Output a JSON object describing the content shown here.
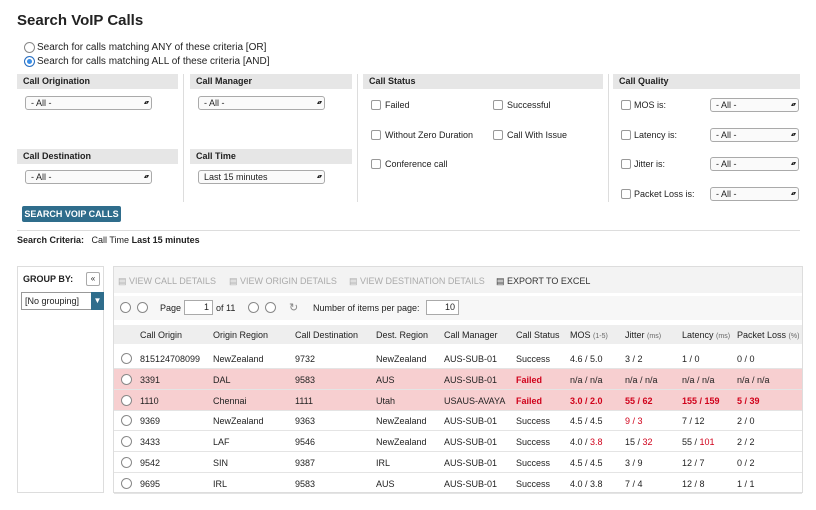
{
  "header": {
    "title": "Search VoIP Calls"
  },
  "match_options": [
    {
      "label": "Search for calls matching ANY of these criteria [OR]",
      "selected": false
    },
    {
      "label": "Search for calls matching ALL of these criteria [AND]",
      "selected": true
    }
  ],
  "filters": {
    "call_origination": {
      "label": "Call Origination",
      "value": "- All -"
    },
    "call_manager": {
      "label": "Call Manager",
      "value": "- All -"
    },
    "call_destination": {
      "label": "Call Destination",
      "value": "- All -"
    },
    "call_time": {
      "label": "Call Time",
      "value": "Last 15 minutes"
    },
    "call_status": {
      "label": "Call Status",
      "options": [
        "Failed",
        "Successful",
        "Without Zero Duration",
        "Call With Issue",
        "Conference call"
      ]
    },
    "call_quality": {
      "label": "Call Quality",
      "options": [
        {
          "label": "MOS is:",
          "value": "- All -"
        },
        {
          "label": "Latency is:",
          "value": "- All -"
        },
        {
          "label": "Jitter is:",
          "value": "- All -"
        },
        {
          "label": "Packet Loss is:",
          "value": "- All -"
        }
      ]
    }
  },
  "search_button": "SEARCH VOIP CALLS",
  "search_criteria": {
    "label": "Search Criteria:",
    "field": "Call Time",
    "value": "Last 15 minutes"
  },
  "group_by": {
    "label": "GROUP BY:",
    "value": "[No grouping]"
  },
  "toolbar": [
    "VIEW CALL DETAILS",
    "VIEW ORIGIN DETAILS",
    "VIEW DESTINATION DETAILS",
    "EXPORT TO EXCEL"
  ],
  "pager": {
    "page_label": "Page",
    "page": 1,
    "of_label": "of 11",
    "per_page_label": "Number of items per page:",
    "per_page": 10
  },
  "table": {
    "separator": " / ",
    "columns": [
      {
        "name": "Call Origin"
      },
      {
        "name": "Origin Region"
      },
      {
        "name": "Call Destination"
      },
      {
        "name": "Dest. Region"
      },
      {
        "name": "Call Manager"
      },
      {
        "name": "Call Status"
      },
      {
        "name": "MOS",
        "unit": "(1-5)"
      },
      {
        "name": "Jitter",
        "unit": "(ms)"
      },
      {
        "name": "Latency",
        "unit": "(ms)"
      },
      {
        "name": "Packet Loss",
        "unit": "(%)"
      }
    ],
    "rows": [
      {
        "highlight": false,
        "cells": [
          "815124708099",
          "NewZealand",
          "9732",
          "NewZealand",
          "AUS-SUB-01",
          "Success",
          [
            "4.6",
            "5.0"
          ],
          [
            "3",
            "2"
          ],
          [
            "1",
            "0"
          ],
          [
            "0",
            "0"
          ]
        ]
      },
      {
        "highlight": true,
        "cells": [
          "3391",
          "DAL",
          "9583",
          "AUS",
          "AUS-SUB-01",
          {
            "text": "Failed",
            "color": "#d0021b"
          },
          [
            "n/a",
            "n/a"
          ],
          [
            "n/a",
            "n/a"
          ],
          [
            "n/a",
            "n/a"
          ],
          [
            "n/a",
            "n/a"
          ]
        ]
      },
      {
        "highlight": true,
        "cells": [
          "1110",
          "Chennai",
          "1111",
          "Utah",
          "USAUS-AVAYA",
          {
            "text": "Failed",
            "color": "#d0021b"
          },
          [
            {
              "text": "3.0",
              "color": "#d0021b"
            },
            {
              "text": "2.0",
              "color": "#d0021b"
            }
          ],
          [
            {
              "text": "55",
              "color": "#d0021b"
            },
            {
              "text": "62",
              "color": "#d0021b"
            }
          ],
          [
            {
              "text": "155",
              "color": "#d0021b"
            },
            {
              "text": "159",
              "color": "#d0021b"
            }
          ],
          [
            {
              "text": "5",
              "color": "#d0021b"
            },
            {
              "text": "39",
              "color": "#d0021b"
            }
          ]
        ]
      },
      {
        "highlight": false,
        "cells": [
          "9369",
          "NewZealand",
          "9363",
          "NewZealand",
          "AUS-SUB-01",
          "Success",
          [
            "4.5",
            "4.5"
          ],
          [
            {
              "text": "9",
              "color": "#d0021b"
            },
            {
              "text": "3",
              "color": "#d0021b"
            }
          ],
          [
            "7",
            "12"
          ],
          [
            "2",
            "0"
          ]
        ]
      },
      {
        "highlight": false,
        "cells": [
          "3433",
          "LAF",
          "9546",
          "NewZealand",
          "AUS-SUB-01",
          "Success",
          [
            "4.0",
            {
              "text": "3.8",
              "color": "#d0021b"
            }
          ],
          [
            "15",
            {
              "text": "32",
              "color": "#d0021b"
            }
          ],
          [
            "55",
            {
              "text": "101",
              "color": "#d0021b"
            }
          ],
          [
            "2",
            "2"
          ]
        ]
      },
      {
        "highlight": false,
        "cells": [
          "9542",
          "SIN",
          "9387",
          "IRL",
          "AUS-SUB-01",
          "Success",
          [
            "4.5",
            "4.5"
          ],
          [
            "3",
            "9"
          ],
          [
            "12",
            "7"
          ],
          [
            "0",
            "2"
          ]
        ]
      },
      {
        "highlight": false,
        "cells": [
          "9695",
          "IRL",
          "9583",
          "AUS",
          "AUS-SUB-01",
          "Success",
          [
            "4.0",
            "3.8"
          ],
          [
            "7",
            "4"
          ],
          [
            "12",
            "8"
          ],
          [
            "1",
            "1"
          ]
        ]
      }
    ]
  }
}
